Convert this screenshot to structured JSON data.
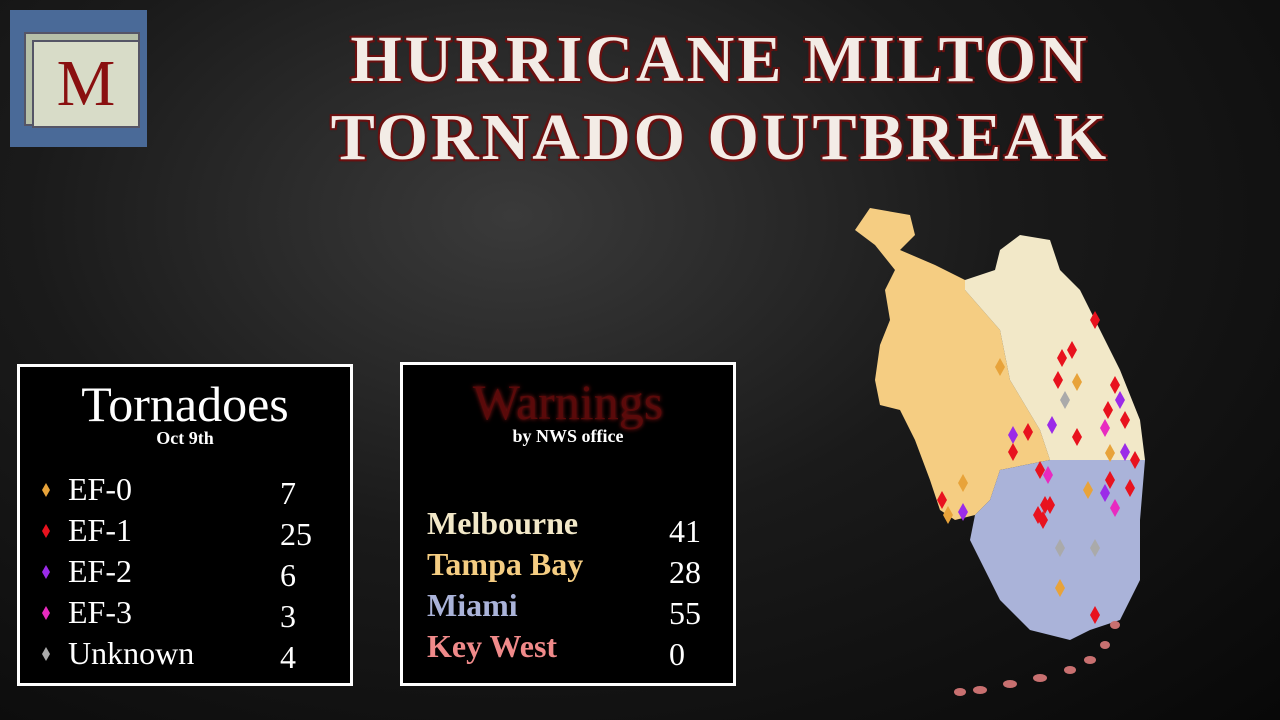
{
  "logo": "M",
  "title": [
    "HURRICANE MILTON",
    "TORNADO OUTBREAK"
  ],
  "tornadoes": {
    "title": "Tornadoes",
    "subtitle": "Oct 9th",
    "rows": [
      {
        "label": "EF-0",
        "count": "7",
        "color": "#e8a33a"
      },
      {
        "label": "EF-1",
        "count": "25",
        "color": "#e8121e"
      },
      {
        "label": "EF-2",
        "count": "6",
        "color": "#9b2be8"
      },
      {
        "label": "EF-3",
        "count": "3",
        "color": "#e82bc0"
      },
      {
        "label": "Unknown",
        "count": "4",
        "color": "#aaaaaa"
      }
    ]
  },
  "warnings": {
    "title": "Warnings",
    "subtitle": "by NWS office",
    "rows": [
      {
        "label": "Melbourne",
        "count": "41",
        "color": "#f2e8c8"
      },
      {
        "label": "Tampa Bay",
        "count": "28",
        "color": "#f5cd82"
      },
      {
        "label": "Miami",
        "count": "55",
        "color": "#aab3d9"
      },
      {
        "label": "Key West",
        "count": "0",
        "color": "#f08a8a"
      }
    ]
  }
}
